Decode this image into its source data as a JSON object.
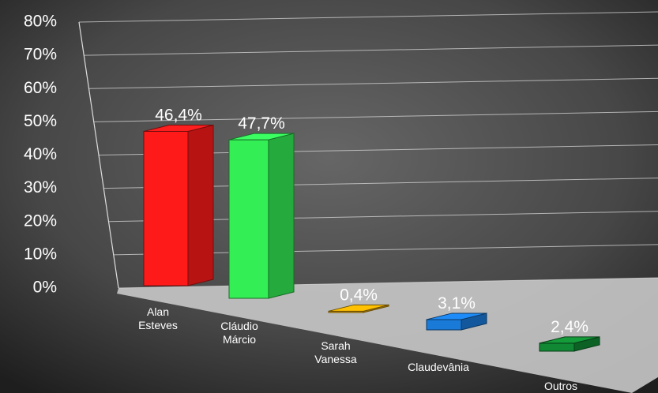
{
  "chart_data": {
    "type": "bar3d",
    "categories": [
      "Alan Esteves",
      "Cláudio Márcio",
      "Sarah Vanessa",
      "Claudevânia",
      "Outros"
    ],
    "values": [
      46.4,
      47.7,
      0.4,
      3.1,
      2.4
    ],
    "value_labels": [
      "46,4%",
      "47,7%",
      "0,4%",
      "3,1%",
      "2,4%"
    ],
    "colors": [
      "#ff1a1a",
      "#33ee55",
      "#e8a800",
      "#1a7ad8",
      "#118833"
    ],
    "ylim": [
      0,
      80
    ],
    "yticks": [
      {
        "value": 0,
        "label": "0%"
      },
      {
        "value": 10,
        "label": "10%"
      },
      {
        "value": 20,
        "label": "20%"
      },
      {
        "value": 30,
        "label": "30%"
      },
      {
        "value": 40,
        "label": "40%"
      },
      {
        "value": 50,
        "label": "50%"
      },
      {
        "value": 60,
        "label": "60%"
      },
      {
        "value": 70,
        "label": "70%"
      },
      {
        "value": 80,
        "label": "80%"
      }
    ],
    "grid": true
  }
}
